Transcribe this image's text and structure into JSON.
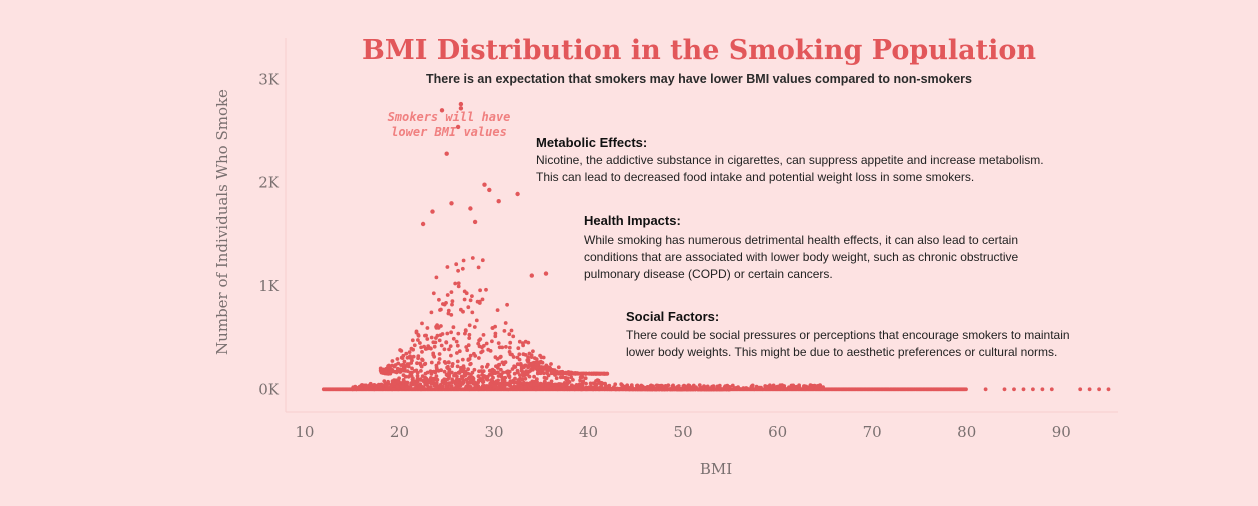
{
  "chart_data": {
    "type": "scatter",
    "title": "BMI Distribution in the Smoking Population",
    "subtitle": "There is an expectation that smokers may have lower BMI values compared to non-smokers",
    "xlabel": "BMI",
    "ylabel": "Number of Individuals Who Smoke",
    "xlim": [
      8,
      96
    ],
    "ylim": [
      -220,
      3400
    ],
    "x_ticks": [
      "10",
      "20",
      "30",
      "40",
      "50",
      "60",
      "70",
      "80",
      "90"
    ],
    "x_tick_values": [
      10,
      20,
      30,
      40,
      50,
      60,
      70,
      80,
      90
    ],
    "y_ticks": [
      "0K",
      "1K",
      "2K",
      "3K"
    ],
    "y_tick_values": [
      0,
      1000,
      2000,
      3000
    ],
    "grid": false,
    "color": "#e2575a",
    "callout": {
      "lines": [
        "Smokers will have",
        "lower BMI values"
      ]
    },
    "annotations": [
      {
        "heading": "Metabolic Effects:",
        "lines": [
          "Nicotine, the addictive substance in cigarettes, can suppress appetite and increase metabolism.",
          "This can lead to decreased food intake and potential weight loss in some smokers."
        ]
      },
      {
        "heading": "Health Impacts:",
        "lines": [
          "While smoking has numerous detrimental health effects, it can also lead to certain",
          "conditions that are associated with lower body weight, such as chronic obstructive",
          "pulmonary disease (COPD) or certain cancers."
        ]
      },
      {
        "heading": "Social Factors:",
        "lines": [
          "There could be social pressures or perceptions that encourage smokers to maintain",
          "lower body weights. This might be due to aesthetic preferences or cultural norms."
        ]
      }
    ],
    "highlight_points": [
      {
        "x": 24.5,
        "y": 2700
      },
      {
        "x": 26.5,
        "y": 2760
      },
      {
        "x": 26.5,
        "y": 2720
      },
      {
        "x": 26.2,
        "y": 2540
      },
      {
        "x": 25.0,
        "y": 2280
      },
      {
        "x": 29.0,
        "y": 1980
      },
      {
        "x": 32.5,
        "y": 1890
      },
      {
        "x": 29.5,
        "y": 1930
      },
      {
        "x": 23.5,
        "y": 1720
      },
      {
        "x": 25.5,
        "y": 1800
      },
      {
        "x": 27.5,
        "y": 1750
      },
      {
        "x": 30.5,
        "y": 1820
      },
      {
        "x": 22.5,
        "y": 1600
      },
      {
        "x": 28.0,
        "y": 1620
      },
      {
        "x": 35.5,
        "y": 1120
      },
      {
        "x": 34.0,
        "y": 1100
      }
    ],
    "series_summary": {
      "dense_band_y": [
        0,
        250
      ],
      "peak_region_x": [
        20,
        32
      ],
      "tail_points_x": [
        82,
        84,
        85,
        86,
        87,
        88,
        89,
        92,
        93,
        94,
        95
      ]
    }
  }
}
